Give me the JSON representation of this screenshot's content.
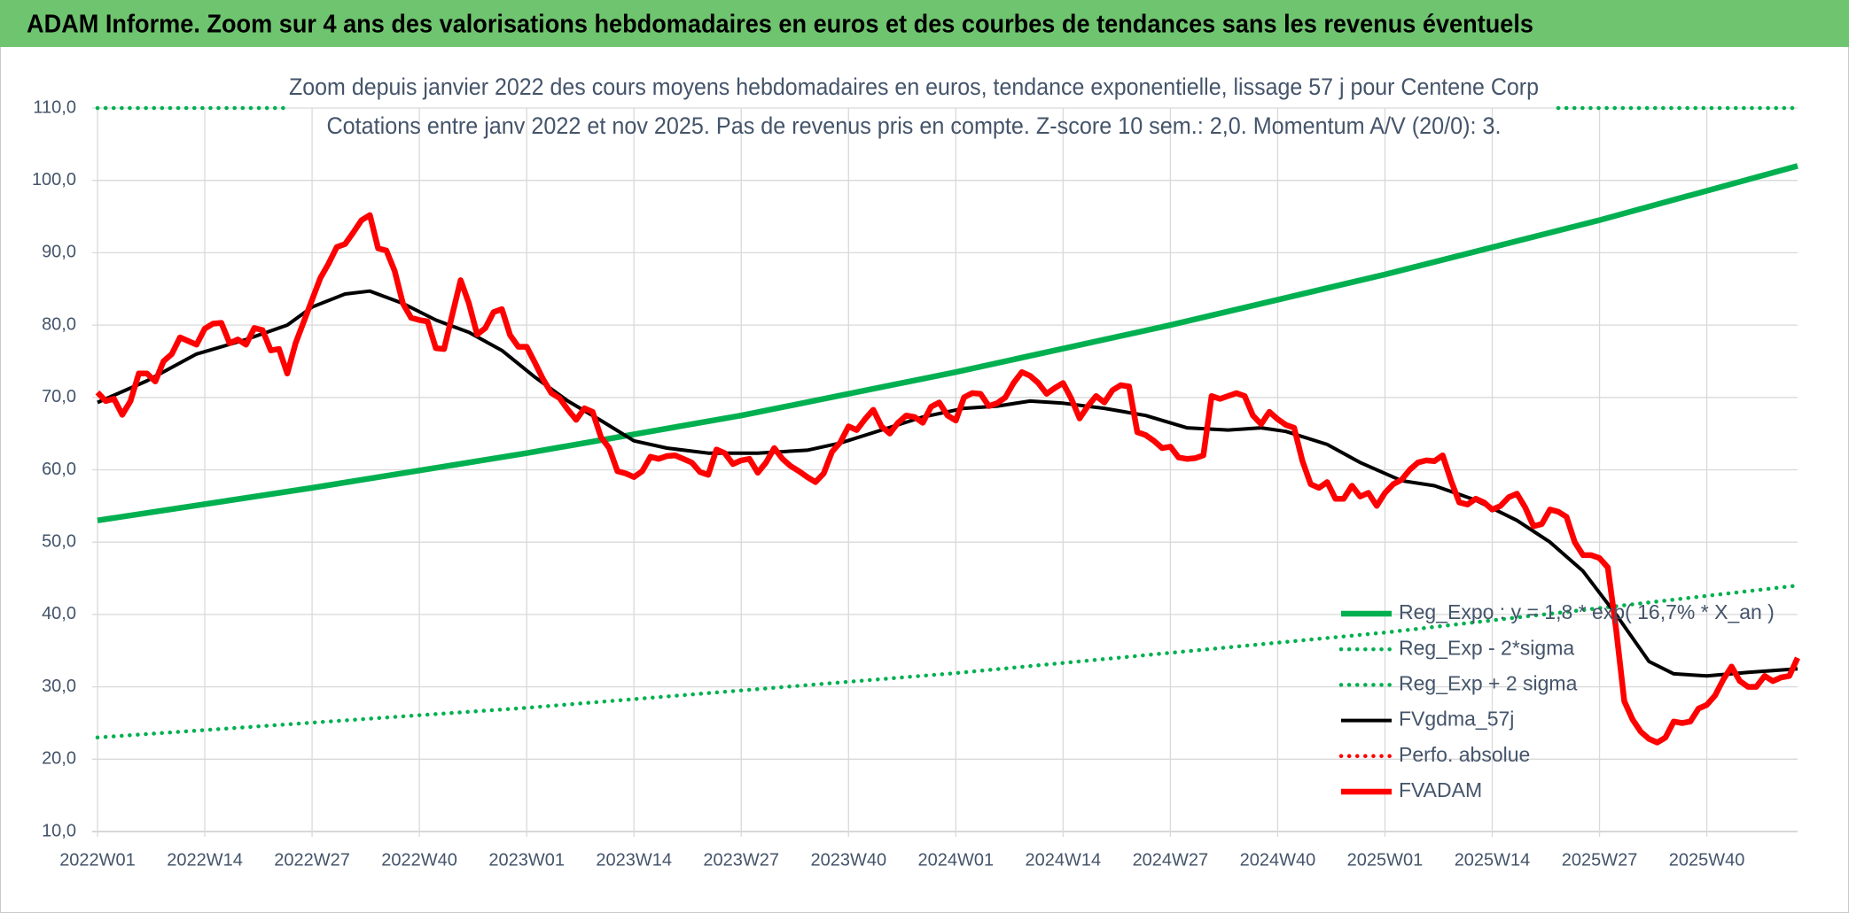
{
  "header": {
    "title": "ADAM Informe. Zoom sur 4 ans des valorisations hebdomadaires en euros et des courbes de tendances sans les revenus éventuels"
  },
  "chart_data": {
    "type": "line",
    "title": "Zoom depuis janvier 2022 des cours moyens hebdomadaires en euros, tendance exponentielle, lissage 57 j pour Centene Corp",
    "subtitle": "Cotations entre janv 2022 et nov 2025. Pas de revenus pris en compte. Z-score 10 sem.: 2,0. Momentum A/V (20/0): 3.",
    "xlim": [
      0,
      206
    ],
    "xticks": [
      {
        "value": 0,
        "label": "2022W01"
      },
      {
        "value": 13,
        "label": "2022W14"
      },
      {
        "value": 26,
        "label": "2022W27"
      },
      {
        "value": 39,
        "label": "2022W40"
      },
      {
        "value": 52,
        "label": "2023W01"
      },
      {
        "value": 65,
        "label": "2023W14"
      },
      {
        "value": 78,
        "label": "2023W27"
      },
      {
        "value": 91,
        "label": "2023W40"
      },
      {
        "value": 104,
        "label": "2024W01"
      },
      {
        "value": 117,
        "label": "2024W14"
      },
      {
        "value": 130,
        "label": "2024W27"
      },
      {
        "value": 143,
        "label": "2024W40"
      },
      {
        "value": 156,
        "label": "2025W01"
      },
      {
        "value": 169,
        "label": "2025W14"
      },
      {
        "value": 182,
        "label": "2025W27"
      },
      {
        "value": 195,
        "label": "2025W40"
      }
    ],
    "ylim": [
      10,
      110
    ],
    "yticks": [
      {
        "value": 10,
        "label": "10,0"
      },
      {
        "value": 20,
        "label": "20,0"
      },
      {
        "value": 30,
        "label": "30,0"
      },
      {
        "value": 40,
        "label": "40,0"
      },
      {
        "value": 50,
        "label": "50,0"
      },
      {
        "value": 60,
        "label": "60,0"
      },
      {
        "value": 70,
        "label": "70,0"
      },
      {
        "value": 80,
        "label": "80,0"
      },
      {
        "value": 90,
        "label": "90,0"
      },
      {
        "value": 100,
        "label": "100,0"
      },
      {
        "value": 110,
        "label": "110,0"
      }
    ],
    "grid": true,
    "legend": "lower right",
    "series": [
      {
        "name": "Reg_Expo : y = 1,8 * exp( 16,7% *  X_an )",
        "color": "#00b050",
        "style": "solid",
        "x": [
          0,
          26,
          52,
          78,
          104,
          130,
          156,
          182,
          206
        ],
        "values": [
          53,
          57.5,
          62.3,
          67.5,
          73.5,
          80,
          87,
          94.5,
          102
        ]
      },
      {
        "name": "Reg_Exp - 2*sigma",
        "color": "#00b050",
        "style": "dotted",
        "x": [
          0,
          52,
          104,
          156,
          206
        ],
        "values": [
          23,
          27.1,
          31.9,
          37.5,
          44
        ]
      },
      {
        "name": "Reg_Exp + 2 sigma",
        "color": "#00b050",
        "style": "dotted",
        "x": [
          0,
          23,
          24,
          177,
          206
        ],
        "values": [
          110,
          110,
          null,
          110,
          110
        ]
      },
      {
        "name": "FVgdma_57j",
        "color": "#000000",
        "style": "solid",
        "x": [
          0,
          6,
          12,
          18,
          23,
          26,
          30,
          33,
          37,
          41,
          45,
          49,
          53,
          57,
          61,
          65,
          69,
          74,
          80,
          86,
          90,
          95,
          100,
          105,
          109,
          113,
          117,
          122,
          127,
          132,
          137,
          141,
          144,
          149,
          153,
          158,
          162,
          167,
          172,
          176,
          180,
          184,
          188,
          191,
          195,
          200,
          206
        ],
        "values": [
          69.3,
          72.3,
          76,
          78,
          80,
          82.5,
          84.3,
          84.7,
          83,
          80.7,
          79,
          76.5,
          72.8,
          69.5,
          66.8,
          64,
          63,
          62.3,
          62.3,
          62.7,
          63.7,
          65.5,
          67.3,
          68.5,
          68.8,
          69.5,
          69.2,
          68.5,
          67.5,
          65.8,
          65.5,
          65.8,
          65.3,
          63.5,
          61,
          58.5,
          57.8,
          55.8,
          53,
          50,
          46,
          40,
          33.5,
          31.8,
          31.5,
          32,
          32.5
        ]
      },
      {
        "name": "Perfo. absolue",
        "color": "#ff0000",
        "style": "dotted",
        "x": [],
        "values": []
      },
      {
        "name": "FVADAM",
        "color": "#ff0000",
        "style": "solid",
        "x": [
          0,
          1,
          2,
          3,
          4,
          5,
          6,
          7,
          8,
          9,
          10,
          11,
          12,
          13,
          14,
          15,
          16,
          17,
          18,
          19,
          20,
          21,
          22,
          23,
          24,
          25,
          26,
          27,
          28,
          29,
          30,
          31,
          32,
          33,
          34,
          35,
          36,
          37,
          38,
          39,
          40,
          41,
          42,
          43,
          44,
          45,
          46,
          47,
          48,
          49,
          50,
          51,
          52,
          53,
          54,
          55,
          56,
          57,
          58,
          59,
          60,
          61,
          62,
          63,
          64,
          65,
          66,
          67,
          68,
          69,
          70,
          71,
          72,
          73,
          74,
          75,
          76,
          77,
          78,
          79,
          80,
          81,
          82,
          83,
          84,
          85,
          86,
          87,
          88,
          89,
          90,
          91,
          92,
          93,
          94,
          95,
          96,
          97,
          98,
          99,
          100,
          101,
          102,
          103,
          104,
          105,
          106,
          107,
          108,
          109,
          110,
          111,
          112,
          113,
          114,
          115,
          116,
          117,
          118,
          119,
          120,
          121,
          122,
          123,
          124,
          125,
          126,
          127,
          128,
          129,
          130,
          131,
          132,
          133,
          134,
          135,
          136,
          137,
          138,
          139,
          140,
          141,
          142,
          143,
          144,
          145,
          146,
          147,
          148,
          149,
          150,
          151,
          152,
          153,
          154,
          155,
          156,
          157,
          158,
          159,
          160,
          161,
          162,
          163,
          164,
          165,
          166,
          167,
          168,
          169,
          170,
          171,
          172,
          173,
          174,
          175,
          176,
          177,
          178,
          179,
          180,
          181,
          182,
          183,
          184,
          185,
          186,
          187,
          188,
          189,
          190,
          191,
          192,
          193,
          194,
          195,
          196,
          197,
          198,
          199,
          200,
          201,
          202,
          203,
          204,
          205,
          206
        ],
        "values": [
          70.7,
          69.5,
          69.8,
          67.6,
          69.5,
          73.3,
          73.3,
          72.2,
          75,
          76,
          78.3,
          77.8,
          77.3,
          79.5,
          80.2,
          80.3,
          77.5,
          78,
          77.3,
          79.6,
          79.3,
          76.5,
          76.7,
          73.3,
          77.5,
          80.5,
          83.5,
          86.5,
          88.5,
          90.8,
          91.2,
          92.8,
          94.5,
          95.2,
          90.6,
          90.3,
          87.5,
          83,
          81,
          80.7,
          80.5,
          76.8,
          76.7,
          81.5,
          86.2,
          83,
          78.7,
          79.6,
          81.8,
          82.2,
          78.6,
          77,
          77,
          74.8,
          72.5,
          70.6,
          69.9,
          68.3,
          66.9,
          68.5,
          68,
          64.5,
          63,
          59.8,
          59.5,
          59,
          59.8,
          61.8,
          61.5,
          61.9,
          62,
          61.5,
          61,
          59.7,
          59.3,
          62.8,
          62.3,
          60.8,
          61.3,
          61.5,
          59.6,
          61,
          63,
          61.5,
          60.5,
          59.8,
          59,
          58.3,
          59.5,
          62.5,
          63.8,
          66,
          65.5,
          67,
          68.3,
          66,
          65,
          66.5,
          67.5,
          67.3,
          66.5,
          68.7,
          69.3,
          67.5,
          66.8,
          70,
          70.6,
          70.5,
          68.8,
          69.2,
          70,
          72,
          73.5,
          73,
          72,
          70.5,
          71.3,
          72,
          69.8,
          67.1,
          68.8,
          70.2,
          69.3,
          71,
          71.7,
          71.5,
          65.2,
          64.8,
          64,
          63,
          63.2,
          61.7,
          61.5,
          61.6,
          62,
          70.2,
          69.8,
          70.2,
          70.6,
          70.2,
          67.5,
          66.3,
          68,
          67,
          66.2,
          65.8,
          61.2,
          58,
          57.5,
          58.3,
          56,
          56,
          57.8,
          56.3,
          56.8,
          55,
          56.8,
          58,
          58.6,
          60,
          61,
          61.3,
          61.2,
          62,
          58.5,
          55.5,
          55.2,
          56,
          55.5,
          54.5,
          55,
          56.2,
          56.7,
          54.8,
          52.2,
          52.5,
          54.5,
          54.2,
          53.5,
          50,
          48.2,
          48.2,
          47.8,
          46.5,
          38,
          28,
          25.5,
          23.8,
          22.8,
          22.3,
          23,
          25.2,
          25,
          25.2,
          27,
          27.5,
          28.8,
          31,
          32.8,
          30.8,
          30,
          30,
          31.5,
          30.8,
          31.3,
          31.5,
          34
        ]
      }
    ]
  }
}
